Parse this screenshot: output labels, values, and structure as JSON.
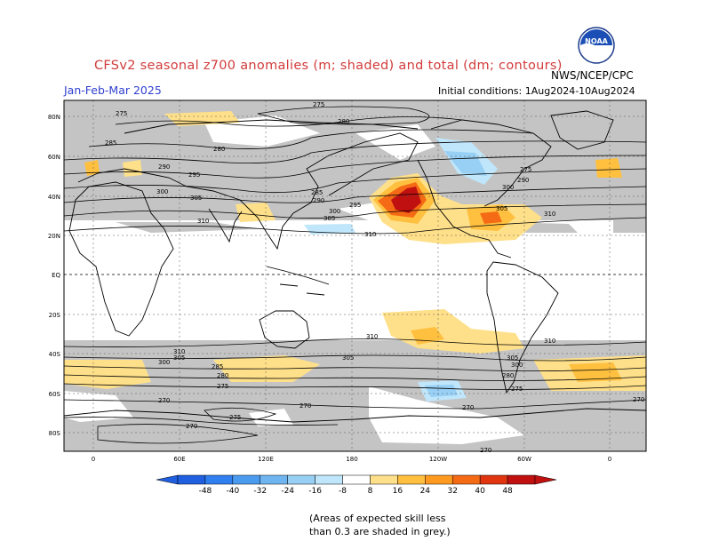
{
  "title": "CFSv2 seasonal z700 anomalies (m; shaded) and total (dm; contours)",
  "period": "Jan-Feb-Mar 2025",
  "agency": "NWS/NCEP/CPC",
  "initial_conditions": "Initial conditions: 1Aug2024-10Aug2024",
  "logo_text": "NOAA",
  "skill_note_line1": "(Areas of expected skill less",
  "skill_note_line2": "than 0.3 are shaded in grey.)",
  "lat_labels": [
    "80N",
    "60N",
    "40N",
    "20N",
    "EQ",
    "20S",
    "40S",
    "60S",
    "80S"
  ],
  "lon_labels": [
    "0",
    "60E",
    "120E",
    "180",
    "120W",
    "60W",
    "0"
  ],
  "colorbar": {
    "labels": [
      "-48",
      "-40",
      "-32",
      "-24",
      "-16",
      "-8",
      "8",
      "16",
      "24",
      "32",
      "40",
      "48"
    ],
    "colors": [
      "#1f5fe0",
      "#2f7ff0",
      "#4a9bf0",
      "#6fb6f0",
      "#98d0f5",
      "#bfe6fa",
      "#ffffff",
      "#ffe08a",
      "#ffc040",
      "#ff9a20",
      "#f56a14",
      "#e0350f",
      "#c01010"
    ]
  },
  "contour_labels": [
    "275",
    "280",
    "285",
    "290",
    "295",
    "300",
    "305",
    "310",
    "270"
  ],
  "colors": {
    "title": "#d23b3b",
    "period": "#2f3fd0",
    "skill_grey": "#c4c4c4"
  }
}
